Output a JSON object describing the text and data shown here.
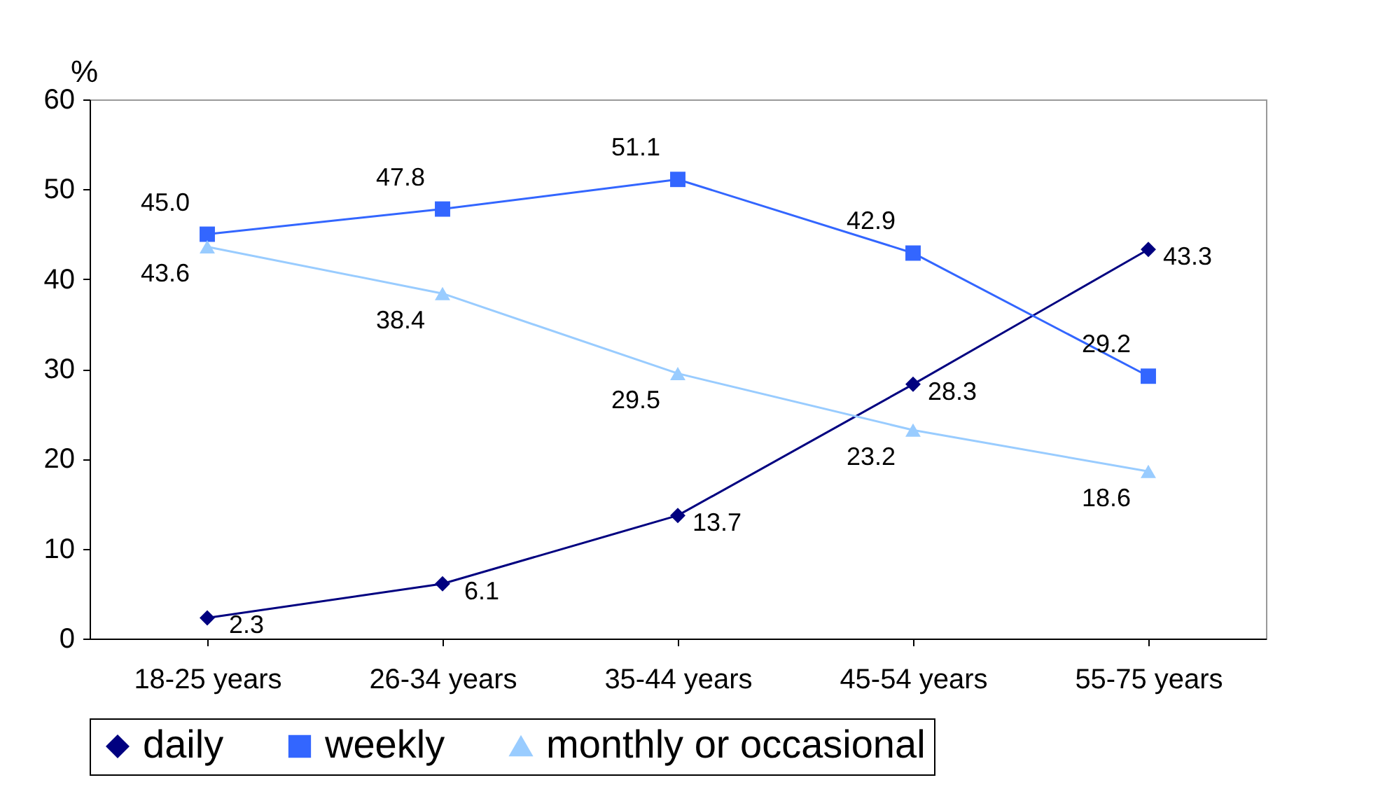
{
  "chart_data": {
    "type": "line",
    "ylabel": "%",
    "categories": [
      "18-25 years",
      "26-34 years",
      "35-44 years",
      "45-54 years",
      "55-75 years"
    ],
    "series": [
      {
        "name": "daily",
        "color": "#000080",
        "marker": "diamond",
        "values": [
          2.3,
          6.1,
          13.7,
          28.3,
          43.3
        ],
        "value_labels": [
          "2.3",
          "6.1",
          "13.7",
          "28.3",
          "43.3"
        ]
      },
      {
        "name": "weekly",
        "color": "#3366ff",
        "marker": "square",
        "values": [
          45.0,
          47.8,
          51.1,
          42.9,
          29.2
        ],
        "value_labels": [
          "45.0",
          "47.8",
          "51.1",
          "42.9",
          "29.2"
        ]
      },
      {
        "name": "monthly or occasional",
        "color": "#99ccff",
        "marker": "triangle",
        "values": [
          43.6,
          38.4,
          29.5,
          23.2,
          18.6
        ],
        "value_labels": [
          "43.6",
          "38.4",
          "29.5",
          "23.2",
          "18.6"
        ]
      }
    ],
    "ylim": [
      0,
      60
    ],
    "yticks": [
      0,
      10,
      20,
      30,
      40,
      50,
      60
    ],
    "grid": false,
    "legend": "bottom"
  }
}
